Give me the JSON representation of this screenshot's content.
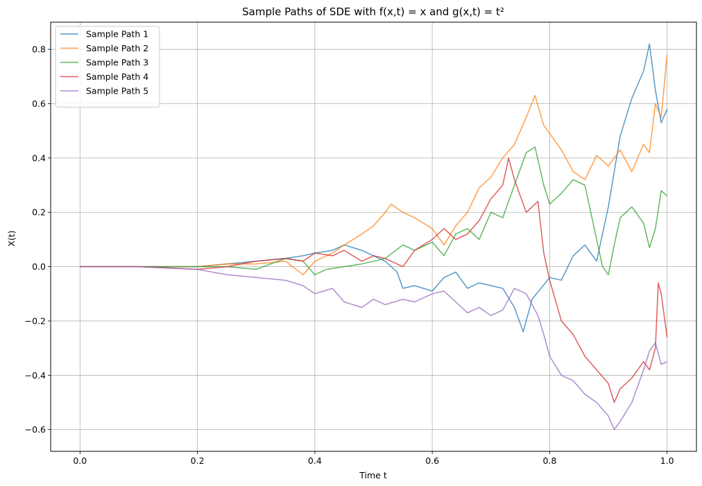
{
  "chart_data": {
    "type": "line",
    "title": "Sample Paths of SDE with f(x,t) = x and g(x,t) = t²",
    "xlabel": "Time t",
    "ylabel": "X(t)",
    "xlim": [
      -0.05,
      1.05
    ],
    "ylim": [
      -0.68,
      0.9
    ],
    "xticks": [
      0.0,
      0.2,
      0.4,
      0.6,
      0.8,
      1.0
    ],
    "xtick_labels": [
      "0.0",
      "0.2",
      "0.4",
      "0.6",
      "0.8",
      "1.0"
    ],
    "yticks": [
      -0.6,
      -0.4,
      -0.2,
      0.0,
      0.2,
      0.4,
      0.6,
      0.8
    ],
    "ytick_labels": [
      "−0.6",
      "−0.4",
      "−0.2",
      "0.0",
      "0.2",
      "0.4",
      "0.6",
      "0.8"
    ],
    "grid": true,
    "legend_position": "top-left",
    "series": [
      {
        "name": "Sample Path 1",
        "color": "#1f77b4",
        "x": [
          0,
          0.1,
          0.2,
          0.25,
          0.3,
          0.35,
          0.38,
          0.4,
          0.43,
          0.45,
          0.48,
          0.5,
          0.52,
          0.54,
          0.55,
          0.57,
          0.6,
          0.62,
          0.64,
          0.66,
          0.68,
          0.7,
          0.72,
          0.74,
          0.755,
          0.77,
          0.8,
          0.82,
          0.84,
          0.86,
          0.88,
          0.9,
          0.92,
          0.94,
          0.96,
          0.97,
          0.98,
          0.99,
          1.0
        ],
        "y": [
          0,
          0.0,
          0.0,
          0.01,
          0.02,
          0.03,
          0.04,
          0.05,
          0.06,
          0.08,
          0.06,
          0.04,
          0.02,
          -0.02,
          -0.08,
          -0.07,
          -0.09,
          -0.04,
          -0.02,
          -0.08,
          -0.06,
          -0.07,
          -0.08,
          -0.15,
          -0.24,
          -0.12,
          -0.04,
          -0.05,
          0.04,
          0.08,
          0.02,
          0.22,
          0.48,
          0.62,
          0.72,
          0.82,
          0.65,
          0.53,
          0.58
        ]
      },
      {
        "name": "Sample Path 2",
        "color": "#ff7f0e",
        "x": [
          0,
          0.1,
          0.2,
          0.25,
          0.3,
          0.35,
          0.38,
          0.4,
          0.43,
          0.45,
          0.48,
          0.5,
          0.52,
          0.53,
          0.55,
          0.57,
          0.6,
          0.62,
          0.64,
          0.66,
          0.68,
          0.7,
          0.72,
          0.74,
          0.76,
          0.775,
          0.79,
          0.8,
          0.82,
          0.84,
          0.86,
          0.88,
          0.9,
          0.92,
          0.94,
          0.96,
          0.97,
          0.98,
          0.99,
          1.0
        ],
        "y": [
          0,
          0.0,
          0.0,
          0.01,
          0.01,
          0.02,
          -0.03,
          0.02,
          0.05,
          0.08,
          0.12,
          0.15,
          0.2,
          0.23,
          0.2,
          0.18,
          0.14,
          0.08,
          0.15,
          0.2,
          0.29,
          0.33,
          0.4,
          0.45,
          0.55,
          0.63,
          0.52,
          0.49,
          0.43,
          0.35,
          0.32,
          0.41,
          0.37,
          0.43,
          0.35,
          0.45,
          0.42,
          0.6,
          0.55,
          0.78
        ]
      },
      {
        "name": "Sample Path 3",
        "color": "#2ca02c",
        "x": [
          0,
          0.1,
          0.2,
          0.25,
          0.3,
          0.35,
          0.38,
          0.4,
          0.42,
          0.45,
          0.48,
          0.5,
          0.52,
          0.55,
          0.57,
          0.6,
          0.62,
          0.64,
          0.66,
          0.68,
          0.7,
          0.72,
          0.74,
          0.76,
          0.775,
          0.79,
          0.8,
          0.82,
          0.84,
          0.86,
          0.88,
          0.89,
          0.9,
          0.91,
          0.92,
          0.94,
          0.96,
          0.97,
          0.98,
          0.99,
          1.0
        ],
        "y": [
          0,
          0.0,
          0.0,
          0.0,
          -0.01,
          0.03,
          0.02,
          -0.03,
          -0.01,
          0.0,
          0.01,
          0.02,
          0.03,
          0.08,
          0.06,
          0.09,
          0.04,
          0.12,
          0.14,
          0.1,
          0.2,
          0.18,
          0.3,
          0.42,
          0.44,
          0.3,
          0.23,
          0.27,
          0.32,
          0.3,
          0.1,
          0.0,
          -0.03,
          0.08,
          0.18,
          0.22,
          0.16,
          0.07,
          0.14,
          0.28,
          0.26
        ]
      },
      {
        "name": "Sample Path 4",
        "color": "#d62728",
        "x": [
          0,
          0.1,
          0.2,
          0.25,
          0.3,
          0.35,
          0.38,
          0.4,
          0.43,
          0.45,
          0.48,
          0.5,
          0.52,
          0.55,
          0.57,
          0.6,
          0.62,
          0.64,
          0.66,
          0.68,
          0.7,
          0.72,
          0.73,
          0.74,
          0.76,
          0.78,
          0.79,
          0.8,
          0.82,
          0.84,
          0.86,
          0.88,
          0.9,
          0.91,
          0.92,
          0.94,
          0.96,
          0.97,
          0.98,
          0.985,
          0.99,
          1.0
        ],
        "y": [
          0,
          0.0,
          -0.01,
          0.0,
          0.02,
          0.03,
          0.02,
          0.05,
          0.04,
          0.06,
          0.02,
          0.04,
          0.03,
          0.0,
          0.06,
          0.1,
          0.14,
          0.1,
          0.12,
          0.17,
          0.25,
          0.3,
          0.4,
          0.32,
          0.2,
          0.24,
          0.05,
          -0.05,
          -0.2,
          -0.25,
          -0.33,
          -0.38,
          -0.43,
          -0.5,
          -0.45,
          -0.41,
          -0.35,
          -0.38,
          -0.3,
          -0.06,
          -0.1,
          -0.26
        ]
      },
      {
        "name": "Sample Path 5",
        "color": "#9467bd",
        "x": [
          0,
          0.1,
          0.2,
          0.25,
          0.3,
          0.35,
          0.38,
          0.4,
          0.43,
          0.45,
          0.48,
          0.5,
          0.52,
          0.55,
          0.57,
          0.6,
          0.62,
          0.64,
          0.66,
          0.68,
          0.7,
          0.72,
          0.74,
          0.76,
          0.78,
          0.79,
          0.8,
          0.82,
          0.84,
          0.86,
          0.88,
          0.9,
          0.91,
          0.92,
          0.94,
          0.96,
          0.97,
          0.98,
          0.99,
          1.0
        ],
        "y": [
          0,
          0.0,
          -0.01,
          -0.03,
          -0.04,
          -0.05,
          -0.07,
          -0.1,
          -0.08,
          -0.13,
          -0.15,
          -0.12,
          -0.14,
          -0.12,
          -0.13,
          -0.1,
          -0.09,
          -0.13,
          -0.17,
          -0.15,
          -0.18,
          -0.16,
          -0.08,
          -0.1,
          -0.18,
          -0.25,
          -0.33,
          -0.4,
          -0.42,
          -0.47,
          -0.5,
          -0.55,
          -0.6,
          -0.57,
          -0.5,
          -0.38,
          -0.31,
          -0.28,
          -0.36,
          -0.35
        ]
      }
    ]
  }
}
